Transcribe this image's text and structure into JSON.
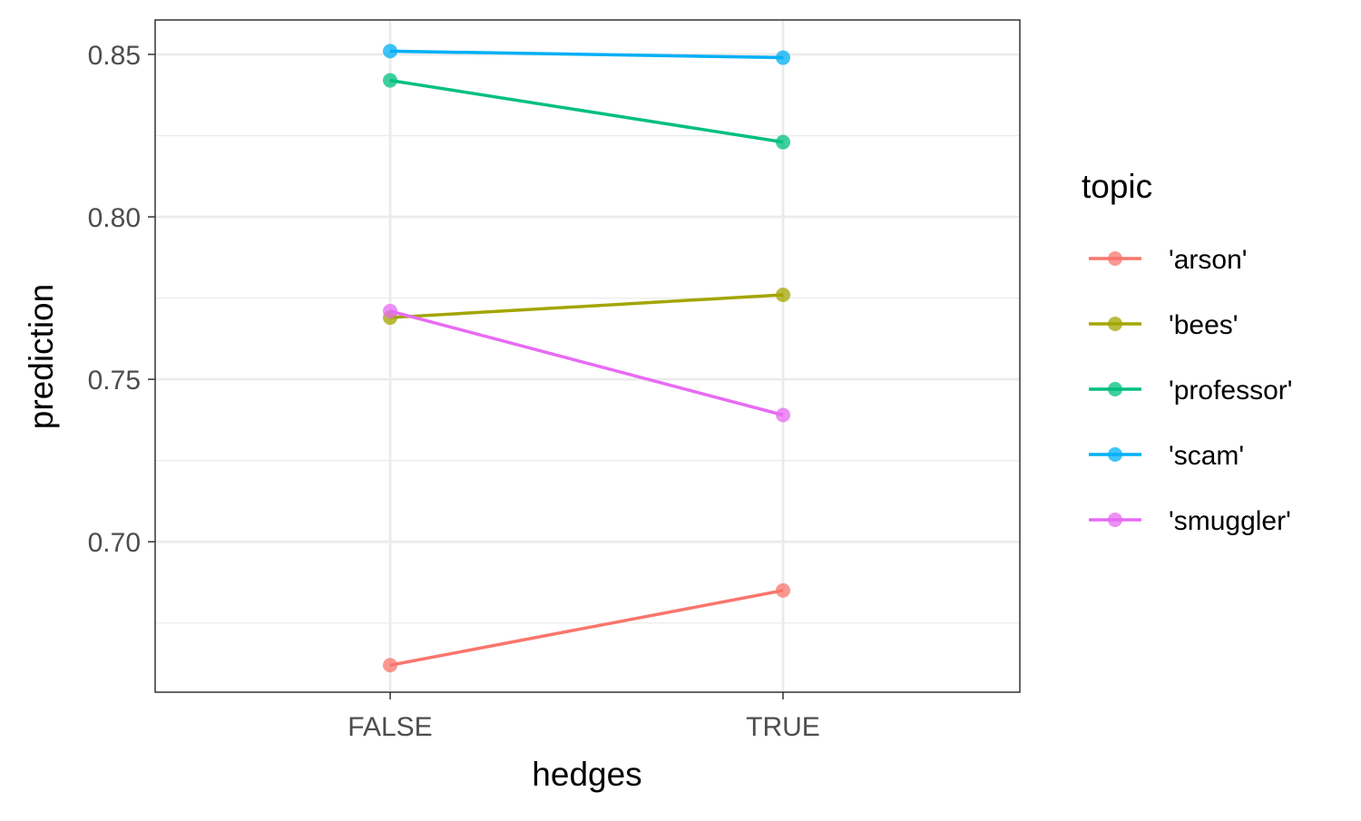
{
  "chart_data": {
    "type": "line",
    "xlabel": "hedges",
    "ylabel": "prediction",
    "categories": [
      "FALSE",
      "TRUE"
    ],
    "y_ticks": [
      "0.70",
      "0.75",
      "0.80",
      "0.85"
    ],
    "ylim": [
      0.6537,
      0.8606
    ],
    "grid": true,
    "legend": {
      "title": "topic",
      "placement": "right"
    },
    "series": [
      {
        "name": "'arson'",
        "values": [
          0.662,
          0.685
        ],
        "color": "#F8766D"
      },
      {
        "name": "'bees'",
        "values": [
          0.769,
          0.776
        ],
        "color": "#A3A500"
      },
      {
        "name": "'professor'",
        "values": [
          0.842,
          0.823
        ],
        "color": "#00BF7D"
      },
      {
        "name": "'scam'",
        "values": [
          0.851,
          0.849
        ],
        "color": "#00B0F6"
      },
      {
        "name": "'smuggler'",
        "values": [
          0.771,
          0.739
        ],
        "color": "#E76BF3"
      }
    ]
  }
}
